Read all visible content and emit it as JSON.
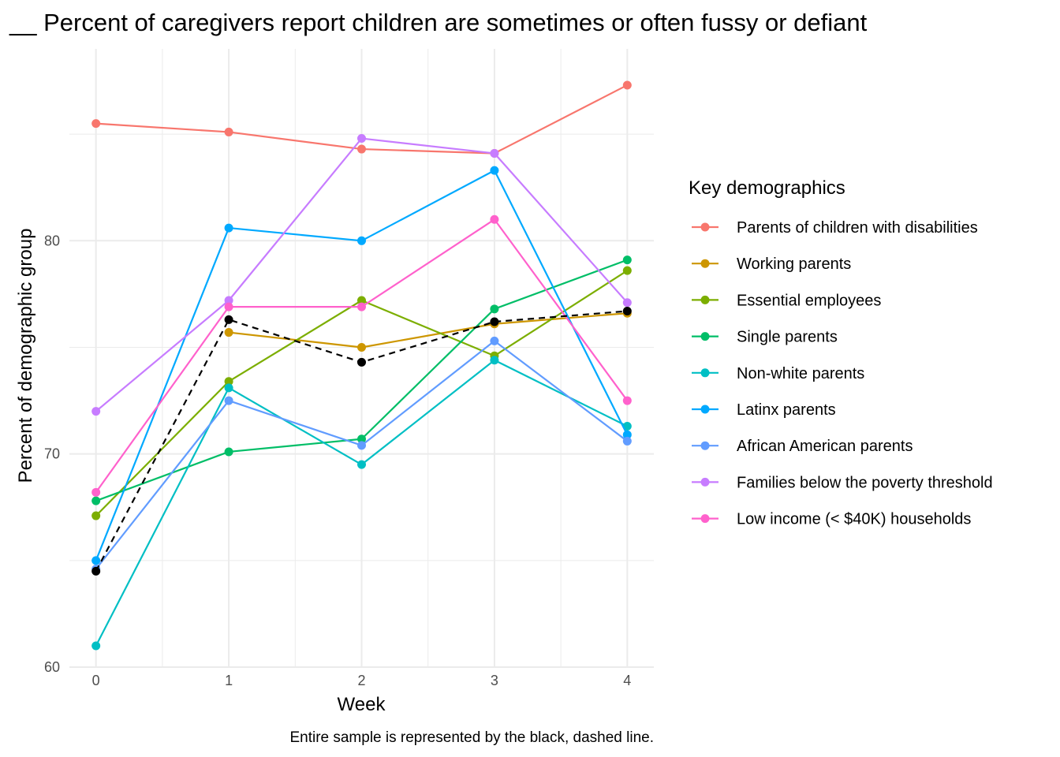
{
  "chart_data": {
    "type": "line",
    "title": "__ Percent of caregivers report children are sometimes or often fussy or defiant",
    "xlabel": "Week",
    "ylabel": "Percent of demographic group",
    "caption": "Entire sample is represented by the black, dashed line.",
    "x": [
      0,
      1,
      2,
      3,
      4
    ],
    "x_ticks": [
      "0",
      "1",
      "2",
      "3",
      "4"
    ],
    "y_ticks": [
      "60",
      "70",
      "80"
    ],
    "xlim": [
      -0.2,
      4.2
    ],
    "ylim": [
      60,
      89
    ],
    "grid": true,
    "legend": {
      "title": "Key demographics",
      "position": "right"
    },
    "series": [
      {
        "name": "Parents of children with disabilities",
        "color": "#F8766D",
        "values": [
          85.5,
          85.1,
          84.3,
          84.1,
          87.3
        ]
      },
      {
        "name": "Working parents",
        "color": "#CD9600",
        "values": [
          null,
          75.7,
          75.0,
          76.1,
          76.6
        ]
      },
      {
        "name": "Essential employees",
        "color": "#7CAE00",
        "values": [
          67.1,
          73.4,
          77.2,
          74.6,
          78.6
        ]
      },
      {
        "name": "Single parents",
        "color": "#00BE67",
        "values": [
          67.8,
          70.1,
          70.7,
          76.8,
          79.1
        ]
      },
      {
        "name": "Non-white parents",
        "color": "#00BFC4",
        "values": [
          61.0,
          73.1,
          69.5,
          74.4,
          71.3
        ]
      },
      {
        "name": "Latinx parents",
        "color": "#00A9FF",
        "values": [
          65.0,
          80.6,
          80.0,
          83.3,
          70.9
        ]
      },
      {
        "name": "African American parents",
        "color": "#619CFF",
        "values": [
          64.6,
          72.5,
          70.4,
          75.3,
          70.6
        ]
      },
      {
        "name": "Families below the poverty threshold",
        "color": "#C77CFF",
        "values": [
          72.0,
          77.2,
          84.8,
          84.1,
          77.1
        ]
      },
      {
        "name": "Low income (< $40K) households",
        "color": "#FF61CC",
        "values": [
          68.2,
          76.9,
          76.9,
          81.0,
          72.5
        ]
      }
    ],
    "overall": {
      "color": "#000000",
      "style": "dashed",
      "values": [
        64.5,
        76.3,
        74.3,
        76.2,
        76.7
      ]
    }
  }
}
